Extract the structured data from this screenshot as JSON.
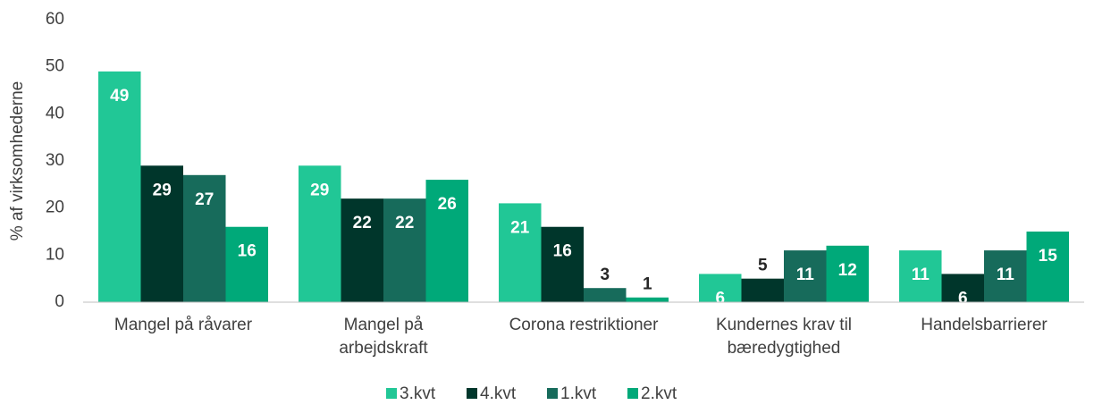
{
  "chart_data": {
    "type": "bar",
    "y_label": "% af virksomhederne",
    "categories": [
      "Mangel på råvarer",
      "Mangel på arbejdskraft",
      "Corona restriktioner",
      "Kundernes krav til bæredygtighed",
      "Handelsbarrierer"
    ],
    "series": [
      {
        "name": "3.kvt",
        "color": "#21c796",
        "values": [
          49,
          29,
          21,
          6,
          11
        ]
      },
      {
        "name": "4.kvt",
        "color": "#00362b",
        "values": [
          29,
          22,
          16,
          5,
          6
        ]
      },
      {
        "name": "1.kvt",
        "color": "#176b5b",
        "values": [
          27,
          22,
          3,
          11,
          11
        ]
      },
      {
        "name": "2.kvt",
        "color": "#00a979",
        "values": [
          16,
          26,
          1,
          12,
          15
        ]
      }
    ],
    "ylim": [
      0,
      60
    ],
    "yticks": [
      0,
      10,
      20,
      30,
      40,
      50,
      60
    ],
    "grid": false,
    "legend": "bottom"
  }
}
